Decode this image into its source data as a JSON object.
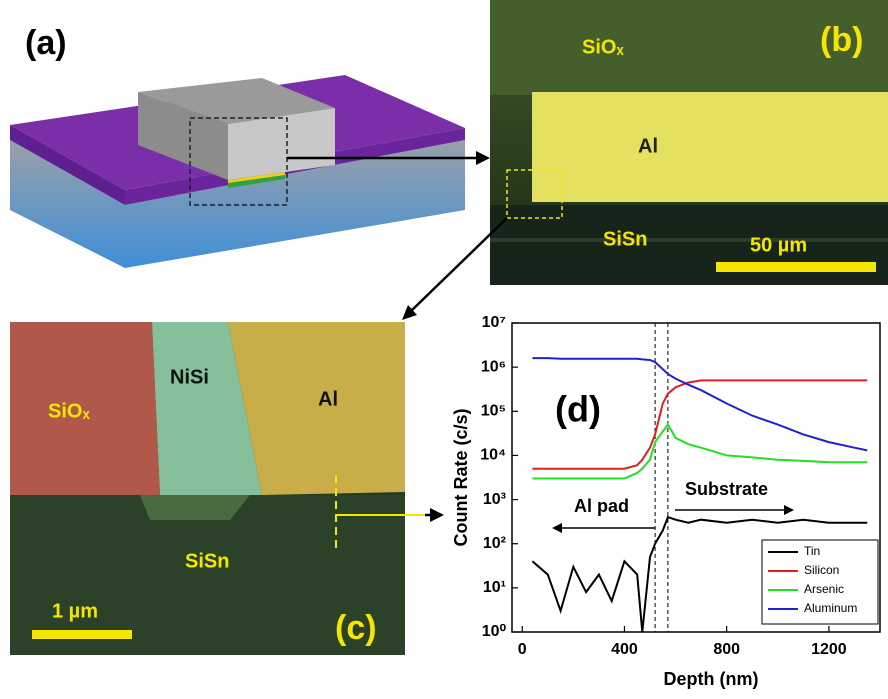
{
  "panels": {
    "a": {
      "label": "(a)"
    },
    "b": {
      "label": "(b)",
      "oxide": "SiOₓ",
      "metal": "Al",
      "substrate": "SiSn",
      "scale": "50 µm"
    },
    "c": {
      "label": "(c)",
      "oxide": "SiOₓ",
      "silicide": "NiSi",
      "metal": "Al",
      "substrate": "SiSn",
      "scale": "1 µm"
    }
  },
  "chart_data": {
    "type": "line",
    "panel_label": "(d)",
    "x_label": "Depth (nm)",
    "y_label": "Count Rate (c/s)",
    "xlim": [
      -40,
      1400
    ],
    "xticks": [
      0,
      400,
      800,
      1200
    ],
    "ylim": [
      1,
      10000000
    ],
    "log_y": true,
    "yticks": [
      {
        "value": 1,
        "label": "10⁰"
      },
      {
        "value": 10,
        "label": "10¹"
      },
      {
        "value": 100,
        "label": "10²"
      },
      {
        "value": 1000,
        "label": "10³"
      },
      {
        "value": 10000,
        "label": "10⁴"
      },
      {
        "value": 100000,
        "label": "10⁵"
      },
      {
        "value": 1000000,
        "label": "10⁶"
      },
      {
        "value": 10000000,
        "label": "10⁷"
      }
    ],
    "vlines": [
      520,
      570
    ],
    "annotations": {
      "left": "Al pad",
      "right": "Substrate"
    },
    "legend": "lower right",
    "x": [
      40,
      100,
      150,
      200,
      250,
      300,
      350,
      400,
      450,
      470,
      500,
      520,
      550,
      570,
      600,
      650,
      700,
      800,
      900,
      1000,
      1100,
      1200,
      1300,
      1350
    ],
    "series": [
      {
        "name": "Tin",
        "color": "#000000",
        "values": [
          40,
          20,
          3,
          30,
          8,
          20,
          5,
          40,
          20,
          1,
          50,
          100,
          200,
          400,
          350,
          300,
          350,
          300,
          350,
          300,
          350,
          300,
          300,
          300
        ]
      },
      {
        "name": "Silicon",
        "color": "#e02020",
        "values": [
          5000,
          5000,
          5000,
          5000,
          5000,
          5000,
          5000,
          5000,
          6000,
          8000,
          15000,
          30000,
          150000,
          250000,
          350000,
          450000,
          500000,
          500000,
          500000,
          500000,
          500000,
          500000,
          500000,
          500000
        ]
      },
      {
        "name": "Arsenic",
        "color": "#20e020",
        "values": [
          3000,
          3000,
          3000,
          3000,
          3000,
          3000,
          3000,
          3000,
          4000,
          5000,
          8000,
          20000,
          35000,
          50000,
          25000,
          18000,
          15000,
          10000,
          9000,
          8000,
          7500,
          7000,
          7000,
          7000
        ]
      },
      {
        "name": "Aluminum",
        "color": "#2020d0",
        "values": [
          1600000,
          1600000,
          1550000,
          1550000,
          1550000,
          1550000,
          1550000,
          1550000,
          1550000,
          1500000,
          1450000,
          1300000,
          900000,
          700000,
          550000,
          400000,
          300000,
          150000,
          80000,
          50000,
          30000,
          20000,
          15000,
          13000
        ]
      }
    ]
  }
}
